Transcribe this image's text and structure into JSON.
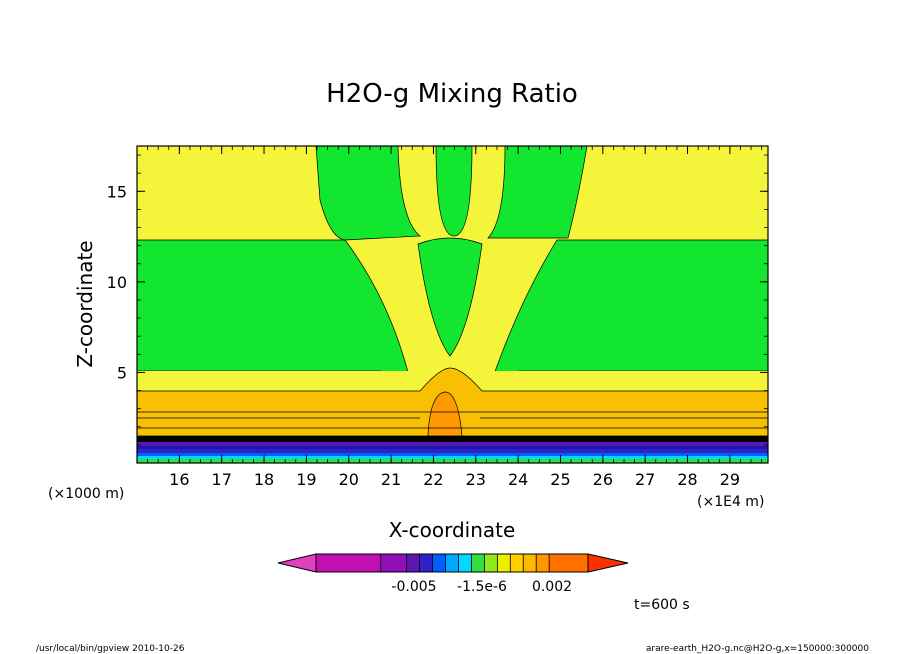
{
  "chart_data": {
    "type": "heatmap",
    "title": "H2O-g Mixing Ratio",
    "xlabel": "X-coordinate",
    "ylabel": "Z-coordinate",
    "x_unit": "(×1E4 m)",
    "y_unit": "(×1000 m)",
    "x_ticks": [
      "16",
      "17",
      "18",
      "19",
      "20",
      "21",
      "22",
      "23",
      "24",
      "25",
      "26",
      "27",
      "28",
      "29"
    ],
    "x_tick_values": [
      16,
      17,
      18,
      19,
      20,
      21,
      22,
      23,
      24,
      25,
      26,
      27,
      28,
      29
    ],
    "y_ticks": [
      "5",
      "10",
      "15"
    ],
    "y_tick_values": [
      5,
      10,
      15
    ],
    "xlim": [
      15,
      29.9
    ],
    "ylim": [
      0,
      17.5
    ],
    "colorbar": {
      "labels": [
        "-0.005",
        "-1.5e-6",
        "0.002"
      ],
      "colors": [
        "#e040c0",
        "#c010b0",
        "#c010b0",
        "#c010b0",
        "#c010b0",
        "#c010b0",
        "#9010b8",
        "#9010b8",
        "#5a18b0",
        "#3020c8",
        "#0060ff",
        "#00a8ff",
        "#00d8ff",
        "#30e040",
        "#90e820",
        "#e8f000",
        "#ffd000",
        "#ffb800",
        "#ff9800",
        "#ff7000",
        "#ff7000",
        "#ff7000",
        "#ff3000"
      ]
    },
    "annotation": "t=600 s"
  },
  "footer": {
    "left": "/usr/local/bin/gpview  2010-10-26",
    "right": "arare-earth_H2O-g.nc@H2O-g,x=150000:300000"
  },
  "colors": {
    "yellow": "#f4f43a",
    "green": "#12e62f",
    "orange": "#f8c000",
    "dark_orange": "#ff9900"
  }
}
